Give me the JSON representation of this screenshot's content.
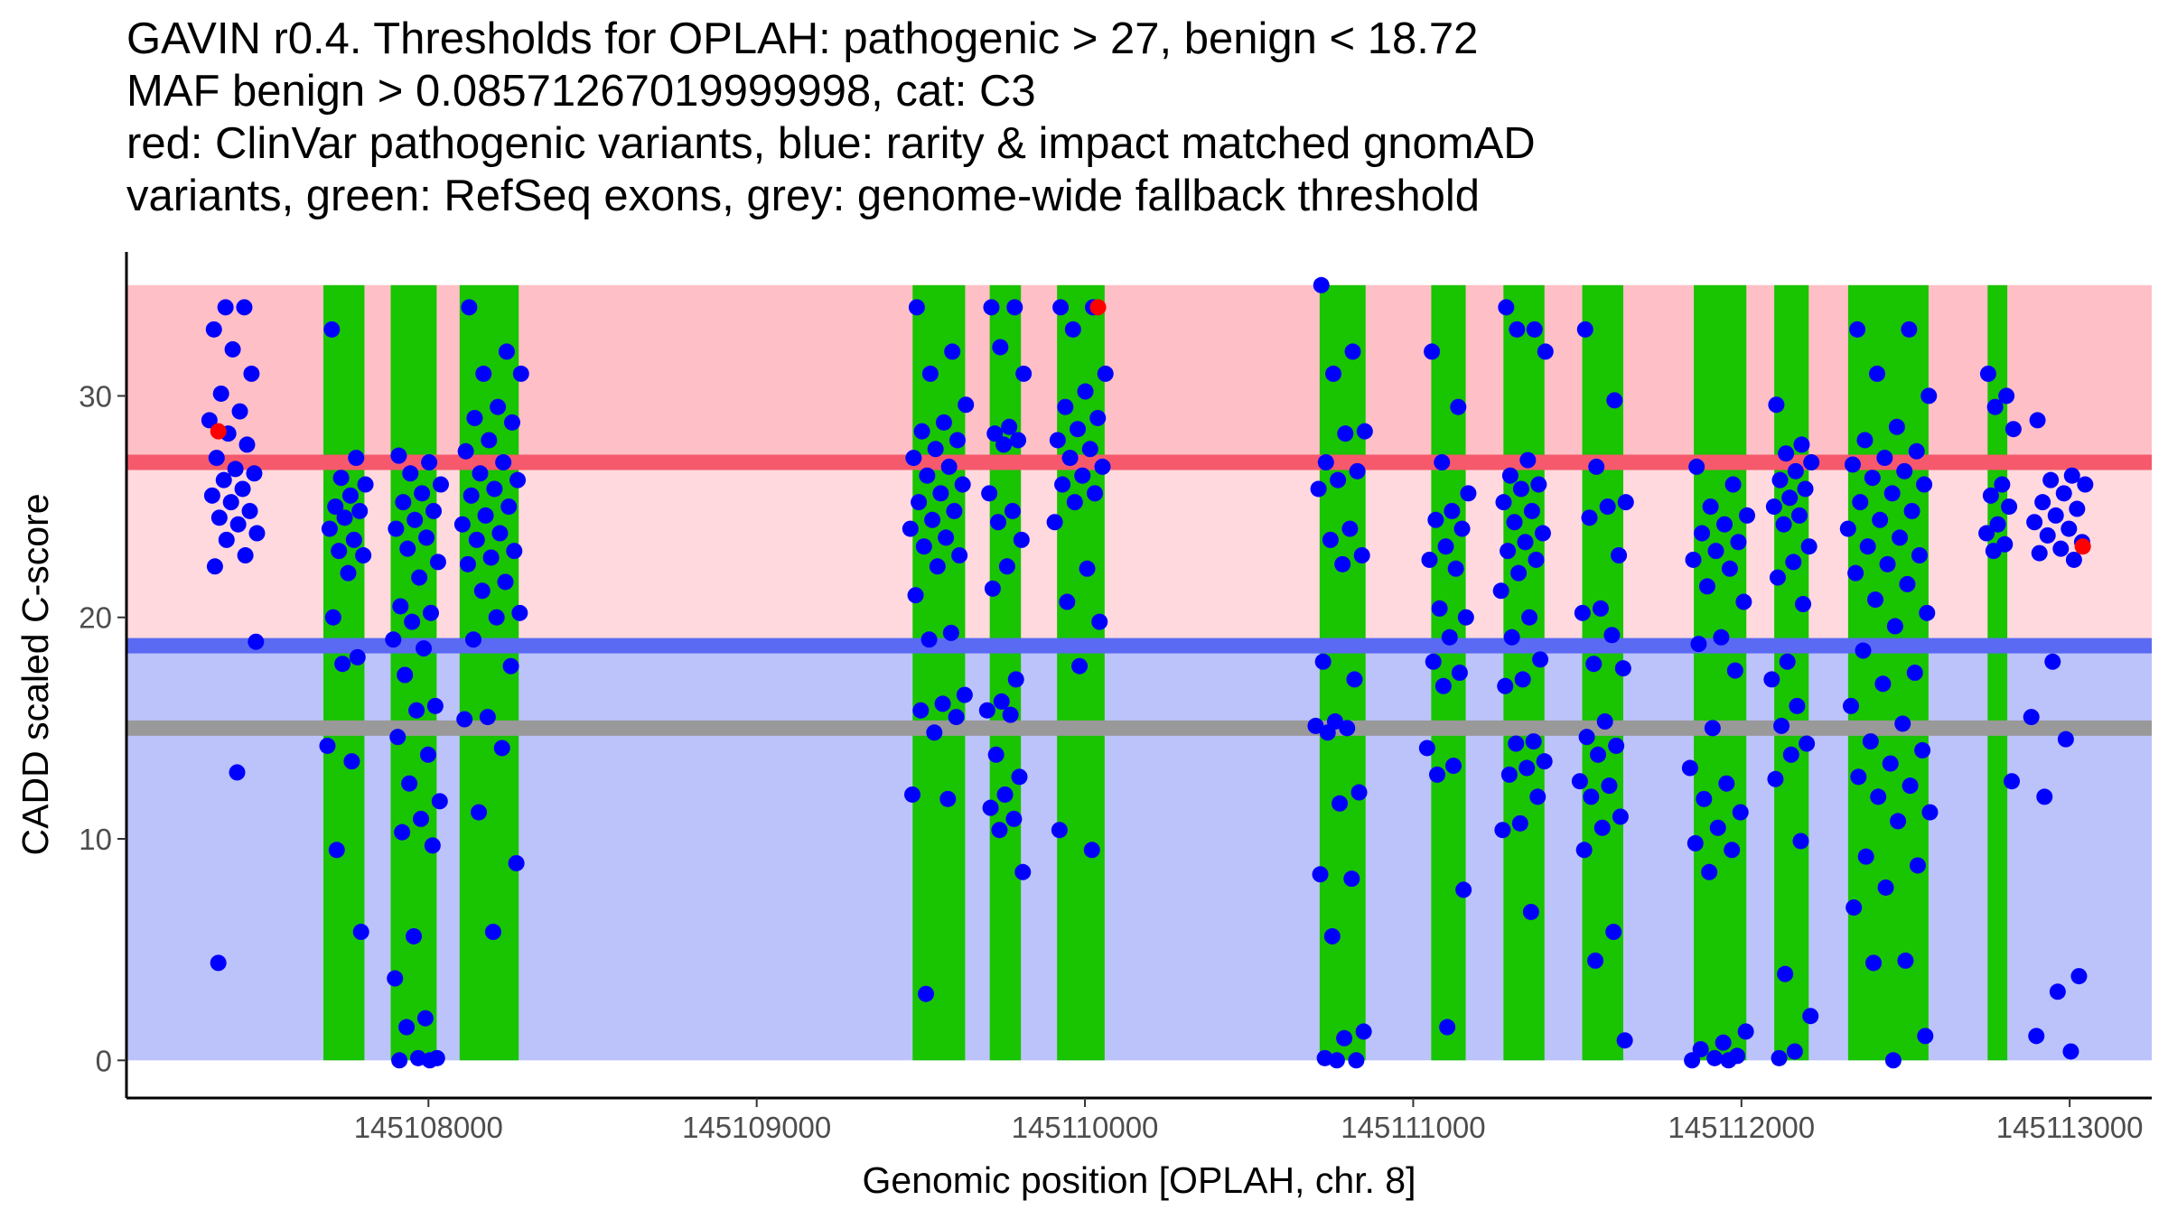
{
  "chart_data": {
    "type": "scatter",
    "title_lines": [
      "GAVIN r0.4. Thresholds for OPLAH: pathogenic > 27, benign < 18.72",
      "MAF benign > 0.08571267019999998, cat: C3",
      "red: ClinVar pathogenic variants, blue: rarity & impact matched gnomAD",
      "variants, green: RefSeq exons, grey: genome-wide fallback threshold"
    ],
    "xlabel": "Genomic position [OPLAH, chr. 8]",
    "ylabel": "CADD scaled C-score",
    "xlim": [
      145107080,
      145113250
    ],
    "ylim": [
      -1.7,
      36.5
    ],
    "x_ticks": [
      145108000,
      145109000,
      145110000,
      145111000,
      145112000,
      145113000
    ],
    "x_tick_labels": [
      "145108000",
      "145109000",
      "145110000",
      "145111000",
      "145112000",
      "145113000"
    ],
    "y_ticks": [
      0,
      10,
      20,
      30
    ],
    "y_tick_labels": [
      "0",
      "10",
      "20",
      "30"
    ],
    "thresholds": {
      "pathogenic": 27,
      "benign": 18.72,
      "genome_wide_fallback": 15,
      "region_max": 35
    },
    "colors": {
      "pathogenic_region": "#ffbfc6",
      "intermediate_region": "#ffd9dd",
      "benign_region": "#bcc3fa",
      "pathogenic_line": "#f5596b",
      "benign_line": "#5b6af2",
      "fallback_line": "#999999",
      "exon": "#19c400",
      "gnomad_point": "#0000ff",
      "clinvar_point": "#ff0000"
    },
    "exons": [
      [
        145107680,
        145107805
      ],
      [
        145107885,
        145108025
      ],
      [
        145108095,
        145108275
      ],
      [
        145109475,
        145109635
      ],
      [
        145109710,
        145109805
      ],
      [
        145109915,
        145110060
      ],
      [
        145110715,
        145110855
      ],
      [
        145111055,
        145111160
      ],
      [
        145111275,
        145111400
      ],
      [
        145111515,
        145111640
      ],
      [
        145111855,
        145112015
      ],
      [
        145112100,
        145112205
      ],
      [
        145112325,
        145112570
      ],
      [
        145112750,
        145112810
      ]
    ],
    "gnomad_clusters": [
      [
        145107330,
        145107480,
        [
          22.3,
          22.8,
          23.5,
          23.8,
          24.2,
          24.5,
          24.8,
          25.2,
          25.5,
          25.8,
          26.2,
          26.5,
          26.7,
          27.2,
          27.8,
          28.3,
          28.9,
          29.3,
          30.1,
          31.0,
          32.1,
          33.0,
          34.0,
          34.0,
          18.9,
          13.0,
          4.4
        ]
      ],
      [
        145107690,
        145107810,
        [
          33.0,
          27.2,
          26.3,
          26.0,
          25.5,
          25.0,
          24.8,
          24.5,
          24.0,
          23.5,
          23.0,
          22.8,
          22.0,
          20.0,
          18.2,
          17.9,
          14.2,
          13.5,
          9.5,
          5.8
        ]
      ],
      [
        145107890,
        145108040,
        [
          27.3,
          27.0,
          26.5,
          26.0,
          25.6,
          25.2,
          24.8,
          24.4,
          24.0,
          23.6,
          23.1,
          22.5,
          21.8,
          20.5,
          20.2,
          19.8,
          19.0,
          18.6,
          17.4,
          16.0,
          15.8,
          14.6,
          13.8,
          12.5,
          11.7,
          10.9,
          10.3,
          9.7,
          5.6,
          3.7,
          1.9,
          1.5,
          0.1,
          0.1,
          0.0,
          0.0
        ]
      ],
      [
        145108100,
        145108285,
        [
          34.0,
          32.0,
          31.0,
          31.0,
          29.5,
          29.0,
          28.8,
          28.0,
          27.5,
          27.0,
          26.5,
          26.2,
          25.8,
          25.5,
          25.0,
          24.6,
          24.2,
          23.8,
          23.5,
          23.0,
          22.7,
          22.4,
          21.6,
          21.2,
          20.2,
          20.0,
          19.0,
          17.8,
          15.5,
          15.4,
          14.1,
          11.2,
          8.9,
          5.8
        ]
      ],
      [
        145109465,
        145109640,
        [
          34.0,
          32.0,
          31.0,
          29.6,
          28.8,
          28.4,
          28.0,
          27.6,
          27.2,
          26.8,
          26.4,
          26.0,
          25.6,
          25.2,
          24.8,
          24.4,
          24.0,
          23.6,
          23.2,
          22.8,
          22.3,
          21.0,
          19.3,
          19.0,
          16.5,
          16.1,
          15.8,
          15.5,
          14.8,
          12.0,
          11.8,
          3.0
        ]
      ],
      [
        145109700,
        145109815,
        [
          34.0,
          34.0,
          32.2,
          31.0,
          28.6,
          28.3,
          28.0,
          27.8,
          25.6,
          24.8,
          24.3,
          23.5,
          22.3,
          21.3,
          17.2,
          16.2,
          15.8,
          15.6,
          13.8,
          12.8,
          12.0,
          11.4,
          10.9,
          10.4,
          8.5
        ]
      ],
      [
        145109905,
        145110065,
        [
          34.0,
          34.0,
          33.0,
          31.0,
          30.2,
          29.5,
          29.0,
          28.5,
          28.0,
          27.6,
          27.2,
          26.8,
          26.4,
          26.0,
          25.6,
          25.2,
          24.3,
          22.2,
          20.7,
          19.8,
          17.8,
          10.4,
          9.5
        ]
      ],
      [
        145110700,
        145110855,
        [
          35.0,
          32.0,
          31.0,
          28.4,
          28.3,
          27.0,
          26.6,
          26.2,
          25.8,
          24.0,
          23.5,
          22.8,
          22.4,
          18.0,
          17.2,
          15.3,
          15.1,
          15.0,
          14.8,
          12.1,
          11.6,
          8.4,
          8.2,
          5.6,
          1.3,
          1.0,
          0.1,
          0.0,
          0.0
        ]
      ],
      [
        145111040,
        145111170,
        [
          32.0,
          29.5,
          27.0,
          25.6,
          24.8,
          24.4,
          24.0,
          23.2,
          22.6,
          22.2,
          20.4,
          20.0,
          19.1,
          18.0,
          17.5,
          16.9,
          14.1,
          13.3,
          12.9,
          7.7,
          1.5
        ]
      ],
      [
        145111265,
        145111405,
        [
          34.0,
          33.0,
          33.0,
          32.0,
          27.1,
          26.4,
          26.0,
          25.8,
          25.2,
          24.8,
          24.3,
          23.8,
          23.4,
          23.0,
          22.6,
          22.0,
          21.2,
          20.0,
          19.1,
          18.1,
          17.2,
          16.9,
          14.4,
          14.3,
          13.5,
          13.2,
          12.9,
          11.9,
          10.7,
          10.4,
          6.7
        ]
      ],
      [
        145111505,
        145111650,
        [
          33.0,
          29.8,
          26.8,
          25.2,
          25.0,
          24.5,
          22.8,
          20.4,
          20.2,
          19.2,
          17.9,
          17.7,
          15.3,
          14.6,
          14.2,
          13.8,
          12.6,
          12.4,
          11.9,
          11.0,
          10.5,
          9.5,
          5.8,
          4.5,
          0.9
        ]
      ],
      [
        145111840,
        145112020,
        [
          26.8,
          26.0,
          25.0,
          24.6,
          24.2,
          23.8,
          23.4,
          23.0,
          22.6,
          22.2,
          21.4,
          20.7,
          19.1,
          18.8,
          17.6,
          15.0,
          13.2,
          12.5,
          11.8,
          11.2,
          10.5,
          9.8,
          9.5,
          8.5,
          1.3,
          0.8,
          0.5,
          0.2,
          0.1,
          0.0,
          0.0
        ]
      ],
      [
        145112090,
        145112215,
        [
          29.6,
          27.8,
          27.4,
          27.0,
          26.6,
          26.2,
          25.8,
          25.4,
          25.0,
          24.6,
          24.2,
          23.2,
          22.5,
          21.8,
          20.6,
          18.0,
          17.2,
          16.0,
          15.1,
          14.3,
          13.8,
          12.7,
          9.9,
          3.9,
          2.0,
          0.4,
          0.1
        ]
      ],
      [
        145112320,
        145112575,
        [
          33.0,
          33.0,
          31.0,
          30.0,
          28.6,
          28.0,
          27.5,
          27.2,
          26.9,
          26.6,
          26.3,
          26.0,
          25.6,
          25.2,
          24.8,
          24.4,
          24.0,
          23.6,
          23.2,
          22.8,
          22.4,
          22.0,
          21.5,
          20.8,
          20.2,
          19.6,
          18.5,
          17.5,
          17.0,
          16.0,
          15.2,
          14.4,
          14.0,
          13.4,
          12.8,
          12.4,
          11.9,
          11.2,
          10.8,
          9.2,
          8.8,
          7.8,
          6.9,
          4.5,
          4.4,
          1.1,
          0.0
        ]
      ],
      [
        145112740,
        145112830,
        [
          31.0,
          30.0,
          29.5,
          28.5,
          26.0,
          25.5,
          25.0,
          24.2,
          23.8,
          23.3,
          23.0,
          12.6
        ]
      ],
      [
        145112880,
        145113050,
        [
          28.9,
          26.4,
          26.2,
          26.0,
          25.6,
          25.2,
          24.9,
          24.6,
          24.3,
          24.0,
          23.7,
          23.4,
          23.1,
          22.9,
          22.6,
          18.0,
          15.5,
          14.5,
          11.9,
          3.8,
          3.1,
          1.1,
          0.4
        ]
      ]
    ],
    "clinvar_points": [
      [
        145107360,
        28.4
      ],
      [
        145110040,
        34.0
      ],
      [
        145113040,
        23.2
      ]
    ]
  }
}
